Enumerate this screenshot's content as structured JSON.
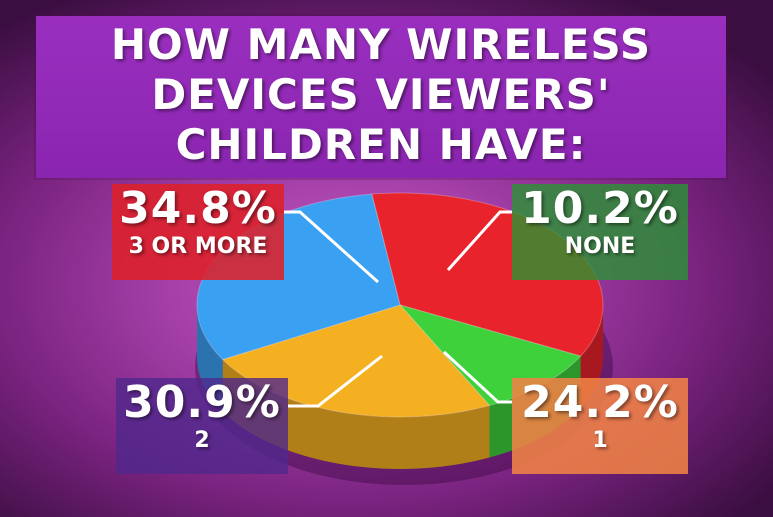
{
  "title_lines": [
    "HOW MANY WIRELESS",
    "DEVICES VIEWERS'",
    "CHILDREN HAVE:"
  ],
  "chart_data": {
    "type": "pie",
    "title": "HOW MANY WIRELESS DEVICES VIEWERS' CHILDREN HAVE:",
    "categories": [
      "3 OR MORE",
      "NONE",
      "1",
      "2"
    ],
    "values": [
      34.8,
      10.2,
      24.2,
      30.9
    ],
    "labels": [
      "34.8%",
      "10.2%",
      "24.2%",
      "30.9%"
    ],
    "colors": [
      "#e8232b",
      "#3fd13c",
      "#f5b021",
      "#3aa0f2"
    ]
  }
}
